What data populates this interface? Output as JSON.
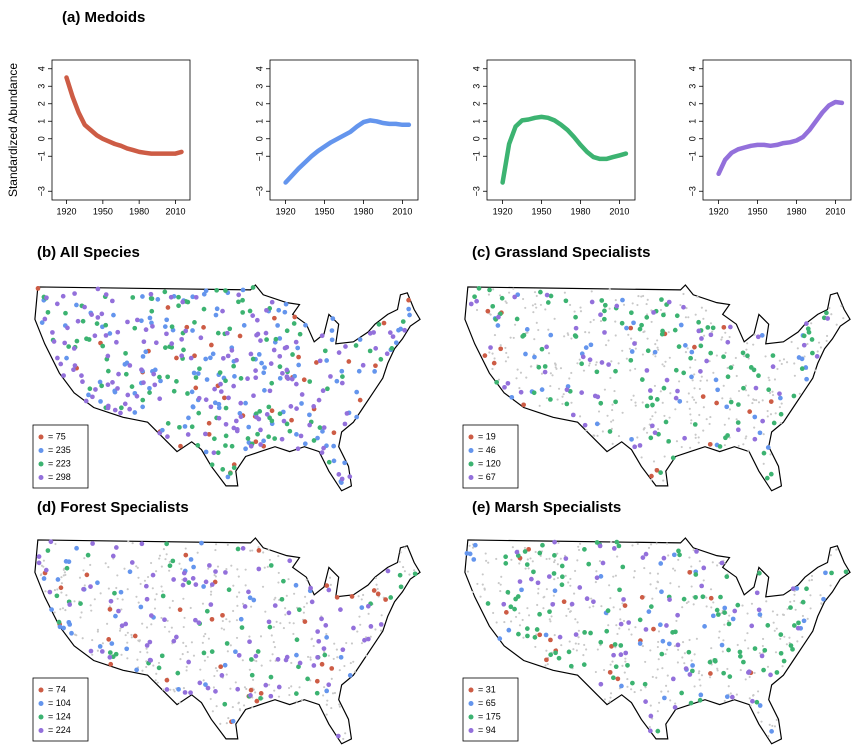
{
  "medoids": {
    "title": "(a) Medoids",
    "ylabel": "Standardized Abundance"
  },
  "chart_data": [
    {
      "type": "line",
      "x": [
        1920,
        1925,
        1930,
        1935,
        1940,
        1945,
        1950,
        1955,
        1960,
        1965,
        1970,
        1975,
        1980,
        1985,
        1990,
        1995,
        2000,
        2005,
        2010,
        2015
      ],
      "series": [
        {
          "color": "#cd5c45",
          "values": [
            3.5,
            2.4,
            1.5,
            0.8,
            0.5,
            0.2,
            0.0,
            -0.15,
            -0.3,
            -0.4,
            -0.55,
            -0.65,
            -0.75,
            -0.8,
            -0.85,
            -0.85,
            -0.85,
            -0.85,
            -0.85,
            -0.75
          ]
        }
      ],
      "xlim": [
        1908,
        2022
      ],
      "ylim": [
        -3.5,
        4.5
      ],
      "xticks": [
        1920,
        1950,
        1980,
        2010
      ],
      "yticks": [
        {
          "value": -3,
          "label": "−3"
        },
        {
          "value": -1,
          "label": "−1"
        },
        0,
        1,
        2,
        3,
        4
      ]
    },
    {
      "type": "line",
      "x": [
        1920,
        1925,
        1930,
        1935,
        1940,
        1945,
        1950,
        1955,
        1960,
        1965,
        1970,
        1975,
        1980,
        1985,
        1990,
        1995,
        2000,
        2005,
        2010,
        2015
      ],
      "series": [
        {
          "color": "#6495ed",
          "values": [
            -2.5,
            -2.1,
            -1.7,
            -1.35,
            -1.0,
            -0.7,
            -0.45,
            -0.2,
            0.0,
            0.2,
            0.4,
            0.7,
            0.95,
            1.05,
            1.0,
            0.9,
            0.85,
            0.85,
            0.8,
            0.8
          ]
        }
      ],
      "xlim": [
        1908,
        2022
      ],
      "ylim": [
        -3.5,
        4.5
      ],
      "xticks": [
        1920,
        1950,
        1980,
        2010
      ],
      "yticks": [
        {
          "value": -3,
          "label": "−3"
        },
        {
          "value": -1,
          "label": "−1"
        },
        0,
        1,
        2,
        3,
        4
      ]
    },
    {
      "type": "line",
      "x": [
        1920,
        1925,
        1930,
        1935,
        1940,
        1945,
        1950,
        1955,
        1960,
        1965,
        1970,
        1975,
        1980,
        1985,
        1990,
        1995,
        2000,
        2005,
        2010,
        2015
      ],
      "series": [
        {
          "color": "#3cb371",
          "values": [
            -2.5,
            -0.3,
            0.7,
            1.05,
            1.1,
            1.2,
            1.25,
            1.2,
            1.05,
            0.8,
            0.5,
            0.1,
            -0.35,
            -0.75,
            -1.05,
            -1.15,
            -1.15,
            -1.05,
            -0.95,
            -0.85
          ]
        }
      ],
      "xlim": [
        1908,
        2022
      ],
      "ylim": [
        -3.5,
        4.5
      ],
      "xticks": [
        1920,
        1950,
        1980,
        2010
      ],
      "yticks": [
        {
          "value": -3,
          "label": "−3"
        },
        {
          "value": -1,
          "label": "−1"
        },
        0,
        1,
        2,
        3,
        4
      ]
    },
    {
      "type": "line",
      "x": [
        1920,
        1925,
        1930,
        1935,
        1940,
        1945,
        1950,
        1955,
        1960,
        1965,
        1970,
        1975,
        1980,
        1985,
        1990,
        1995,
        2000,
        2005,
        2010,
        2015
      ],
      "series": [
        {
          "color": "#9370db",
          "values": [
            -2.0,
            -1.2,
            -0.8,
            -0.6,
            -0.5,
            -0.4,
            -0.35,
            -0.35,
            -0.4,
            -0.35,
            -0.25,
            -0.2,
            -0.1,
            0.1,
            0.5,
            1.0,
            1.5,
            1.9,
            2.1,
            2.05
          ]
        }
      ],
      "xlim": [
        1908,
        2022
      ],
      "ylim": [
        -3.5,
        4.5
      ],
      "xticks": [
        1920,
        1950,
        1980,
        2010
      ],
      "yticks": [
        {
          "value": -3,
          "label": "−3"
        },
        {
          "value": -1,
          "label": "−1"
        },
        0,
        1,
        2,
        3,
        4
      ]
    }
  ],
  "maps": [
    {
      "title": "(b) All Species",
      "legend": [
        {
          "color": "#cd5c45",
          "label": "= 75"
        },
        {
          "color": "#6495ed",
          "label": "= 235"
        },
        {
          "color": "#3cb371",
          "label": "= 223"
        },
        {
          "color": "#9370db",
          "label": "= 298"
        }
      ]
    },
    {
      "title": "(c) Grassland Specialists",
      "legend": [
        {
          "color": "#cd5c45",
          "label": "= 19"
        },
        {
          "color": "#6495ed",
          "label": "= 46"
        },
        {
          "color": "#3cb371",
          "label": "= 120"
        },
        {
          "color": "#9370db",
          "label": "= 67"
        }
      ]
    },
    {
      "title": "(d) Forest Specialists",
      "legend": [
        {
          "color": "#cd5c45",
          "label": "= 74"
        },
        {
          "color": "#6495ed",
          "label": "= 104"
        },
        {
          "color": "#3cb371",
          "label": "= 124"
        },
        {
          "color": "#9370db",
          "label": "= 224"
        }
      ]
    },
    {
      "title": "(e) Marsh Specialists",
      "legend": [
        {
          "color": "#cd5c45",
          "label": "= 31"
        },
        {
          "color": "#6495ed",
          "label": "= 65"
        },
        {
          "color": "#3cb371",
          "label": "= 175"
        },
        {
          "color": "#9370db",
          "label": "= 94"
        }
      ]
    }
  ]
}
